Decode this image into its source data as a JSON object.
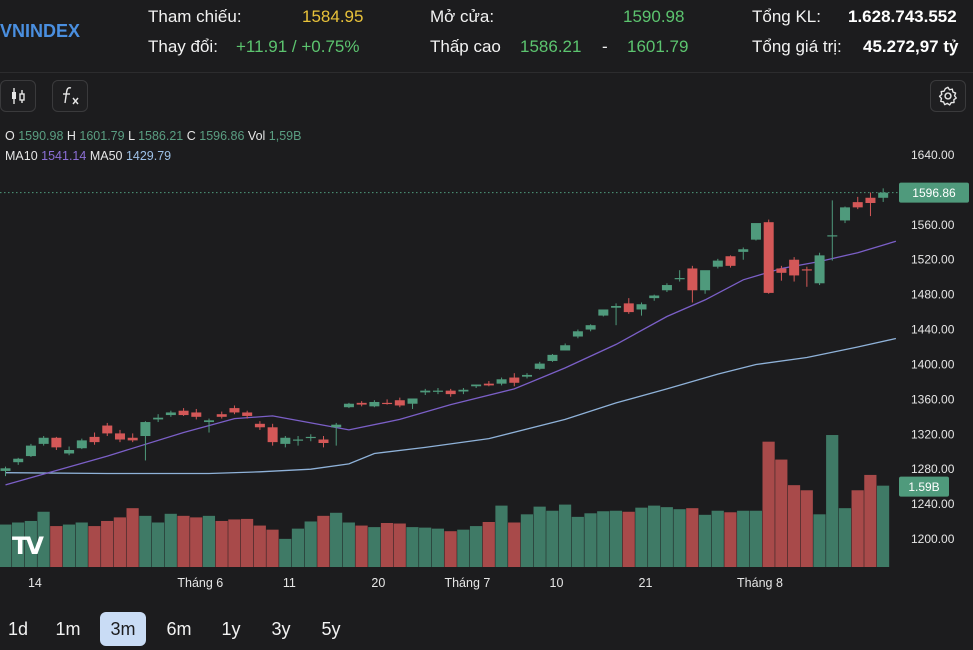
{
  "header": {
    "symbol": "VNINDEX",
    "ref_label": "Tham chiếu:",
    "ref_value": "1584.95",
    "change_label": "Thay đổi:",
    "change_value": "+11.91 / +0.75%",
    "open_label": "Mở cửa:",
    "open_value": "1590.98",
    "range_label": "Thấp cao",
    "low_value": "1586.21",
    "range_sep": "-",
    "high_value": "1601.79",
    "vol_label": "Tổng KL:",
    "vol_value": "1.628.743.552",
    "value_label": "Tổng giá trị:",
    "value_value": "45.272,97 tỷ"
  },
  "toolbar": {
    "candles_icon": "candlestick-icon",
    "indicator_icon": "function-icon",
    "settings_icon": "gear-icon"
  },
  "legend": {
    "o_label": "O",
    "o_value": "1590.98",
    "h_label": "H",
    "h_value": "1601.79",
    "l_label": "L",
    "l_value": "1586.21",
    "c_label": "C",
    "c_value": "1596.86",
    "vol_label": "Vol",
    "vol_value": "1,59B",
    "ma10_label": "MA10",
    "ma10_value": "1541.14",
    "ma50_label": "MA50",
    "ma50_value": "1429.79"
  },
  "logo": "TV",
  "ranges": [
    {
      "label": "1d",
      "active": false
    },
    {
      "label": "1m",
      "active": false
    },
    {
      "label": "3m",
      "active": true
    },
    {
      "label": "6m",
      "active": false
    },
    {
      "label": "1y",
      "active": false
    },
    {
      "label": "3y",
      "active": false
    },
    {
      "label": "5y",
      "active": false
    }
  ],
  "colors": {
    "up": "#4f9a7c",
    "down": "#d45858",
    "vol_up": "#3f7a66",
    "vol_down": "#a84a4a",
    "ma10": "#7b5fc7",
    "ma50": "#8fb2d9",
    "symbol": "#4a8fe0",
    "ref": "#e8c23a",
    "gain": "#5cc46f"
  },
  "chart_data": {
    "type": "candlestick",
    "y_ticks": [
      1200,
      1240,
      1280,
      1320,
      1360,
      1400,
      1440,
      1480,
      1520,
      1560,
      1600,
      1640
    ],
    "ylim": [
      1185,
      1650
    ],
    "y_tick_labels": [
      "1200.00",
      "1240.00",
      "1280.00",
      "1320.00",
      "1360.00",
      "1400.00",
      "1440.00",
      "1480.00",
      "1520.00",
      "1560.00",
      "1600.00",
      "1640.00"
    ],
    "last_price_label": "1596.86",
    "last_price": 1596.86,
    "last_volume_label": "1.59B",
    "x_tick_labels": [
      {
        "index": 2,
        "label": "14"
      },
      {
        "index": 15,
        "label": "Tháng 6"
      },
      {
        "index": 22,
        "label": "11"
      },
      {
        "index": 29,
        "label": "20"
      },
      {
        "index": 36,
        "label": "Tháng 7"
      },
      {
        "index": 43,
        "label": "10"
      },
      {
        "index": 50,
        "label": "21"
      },
      {
        "index": 59,
        "label": "Tháng 8"
      }
    ],
    "volume_max": 2.6,
    "candles": [
      {
        "o": 1278,
        "h": 1283,
        "l": 1272,
        "c": 1281,
        "v": 0.83
      },
      {
        "o": 1288,
        "h": 1293,
        "l": 1285,
        "c": 1292,
        "v": 0.87
      },
      {
        "o": 1295,
        "h": 1309,
        "l": 1294,
        "c": 1307,
        "v": 0.9
      },
      {
        "o": 1309,
        "h": 1318,
        "l": 1307,
        "c": 1316,
        "v": 1.08
      },
      {
        "o": 1316,
        "h": 1317,
        "l": 1302,
        "c": 1305,
        "v": 0.8
      },
      {
        "o": 1298,
        "h": 1306,
        "l": 1296,
        "c": 1302,
        "v": 0.83
      },
      {
        "o": 1304,
        "h": 1315,
        "l": 1303,
        "c": 1313,
        "v": 0.87
      },
      {
        "o": 1317,
        "h": 1322,
        "l": 1308,
        "c": 1311,
        "v": 0.8
      },
      {
        "o": 1330,
        "h": 1333,
        "l": 1318,
        "c": 1321,
        "v": 0.9
      },
      {
        "o": 1321,
        "h": 1325,
        "l": 1311,
        "c": 1314,
        "v": 0.97
      },
      {
        "o": 1316,
        "h": 1321,
        "l": 1311,
        "c": 1313,
        "v": 1.15
      },
      {
        "o": 1318,
        "h": 1335,
        "l": 1290,
        "c": 1334,
        "v": 1.0
      },
      {
        "o": 1337,
        "h": 1343,
        "l": 1334,
        "c": 1339,
        "v": 0.87
      },
      {
        "o": 1342,
        "h": 1347,
        "l": 1340,
        "c": 1345,
        "v": 1.04
      },
      {
        "o": 1347,
        "h": 1350,
        "l": 1341,
        "c": 1342,
        "v": 1.0
      },
      {
        "o": 1345,
        "h": 1349,
        "l": 1337,
        "c": 1340,
        "v": 0.97
      },
      {
        "o": 1334,
        "h": 1338,
        "l": 1322,
        "c": 1336,
        "v": 1.0
      },
      {
        "o": 1343,
        "h": 1346,
        "l": 1338,
        "c": 1340,
        "v": 0.9
      },
      {
        "o": 1350,
        "h": 1353,
        "l": 1343,
        "c": 1345,
        "v": 0.93
      },
      {
        "o": 1345,
        "h": 1347,
        "l": 1338,
        "c": 1341,
        "v": 0.94
      },
      {
        "o": 1332,
        "h": 1335,
        "l": 1325,
        "c": 1328,
        "v": 0.81
      },
      {
        "o": 1328,
        "h": 1332,
        "l": 1307,
        "c": 1311,
        "v": 0.73
      },
      {
        "o": 1309,
        "h": 1318,
        "l": 1305,
        "c": 1316,
        "v": 0.55
      },
      {
        "o": 1313,
        "h": 1318,
        "l": 1307,
        "c": 1314,
        "v": 0.75
      },
      {
        "o": 1316,
        "h": 1320,
        "l": 1312,
        "c": 1317,
        "v": 0.89
      },
      {
        "o": 1314,
        "h": 1318,
        "l": 1305,
        "c": 1310,
        "v": 1.0
      },
      {
        "o": 1328,
        "h": 1333,
        "l": 1307,
        "c": 1331,
        "v": 1.06
      },
      {
        "o": 1351,
        "h": 1356,
        "l": 1350,
        "c": 1355,
        "v": 0.87
      },
      {
        "o": 1356,
        "h": 1358,
        "l": 1352,
        "c": 1354,
        "v": 0.81
      },
      {
        "o": 1352,
        "h": 1359,
        "l": 1351,
        "c": 1357,
        "v": 0.78
      },
      {
        "o": 1356,
        "h": 1360,
        "l": 1354,
        "c": 1355,
        "v": 0.86
      },
      {
        "o": 1359,
        "h": 1362,
        "l": 1351,
        "c": 1353,
        "v": 0.85
      },
      {
        "o": 1355,
        "h": 1361,
        "l": 1349,
        "c": 1361,
        "v": 0.78
      },
      {
        "o": 1368,
        "h": 1372,
        "l": 1365,
        "c": 1370,
        "v": 0.77
      },
      {
        "o": 1370,
        "h": 1373,
        "l": 1366,
        "c": 1370,
        "v": 0.75
      },
      {
        "o": 1370,
        "h": 1372,
        "l": 1363,
        "c": 1366,
        "v": 0.7
      },
      {
        "o": 1369,
        "h": 1373,
        "l": 1366,
        "c": 1371,
        "v": 0.73
      },
      {
        "o": 1375,
        "h": 1377,
        "l": 1373,
        "c": 1377,
        "v": 0.8
      },
      {
        "o": 1378,
        "h": 1381,
        "l": 1375,
        "c": 1376,
        "v": 0.88
      },
      {
        "o": 1378,
        "h": 1385,
        "l": 1376,
        "c": 1383,
        "v": 1.2
      },
      {
        "o": 1385,
        "h": 1390,
        "l": 1375,
        "c": 1379,
        "v": 0.87
      },
      {
        "o": 1386,
        "h": 1390,
        "l": 1384,
        "c": 1388,
        "v": 1.03
      },
      {
        "o": 1395,
        "h": 1403,
        "l": 1394,
        "c": 1401,
        "v": 1.18
      },
      {
        "o": 1404,
        "h": 1412,
        "l": 1403,
        "c": 1411,
        "v": 1.1
      },
      {
        "o": 1416,
        "h": 1424,
        "l": 1416,
        "c": 1422,
        "v": 1.22
      },
      {
        "o": 1432,
        "h": 1440,
        "l": 1430,
        "c": 1438,
        "v": 0.98
      },
      {
        "o": 1440,
        "h": 1446,
        "l": 1438,
        "c": 1445,
        "v": 1.05
      },
      {
        "o": 1456,
        "h": 1462,
        "l": 1455,
        "c": 1463,
        "v": 1.09
      },
      {
        "o": 1465,
        "h": 1470,
        "l": 1445,
        "c": 1467,
        "v": 1.1
      },
      {
        "o": 1470,
        "h": 1476,
        "l": 1458,
        "c": 1460,
        "v": 1.08
      },
      {
        "o": 1463,
        "h": 1471,
        "l": 1456,
        "c": 1469,
        "v": 1.16
      },
      {
        "o": 1476,
        "h": 1480,
        "l": 1473,
        "c": 1479,
        "v": 1.2
      },
      {
        "o": 1485,
        "h": 1493,
        "l": 1483,
        "c": 1491,
        "v": 1.17
      },
      {
        "o": 1498,
        "h": 1508,
        "l": 1495,
        "c": 1499,
        "v": 1.13
      },
      {
        "o": 1510,
        "h": 1513,
        "l": 1471,
        "c": 1485,
        "v": 1.15
      },
      {
        "o": 1485,
        "h": 1505,
        "l": 1481,
        "c": 1508,
        "v": 1.02
      },
      {
        "o": 1512,
        "h": 1521,
        "l": 1510,
        "c": 1519,
        "v": 1.1
      },
      {
        "o": 1524,
        "h": 1525,
        "l": 1511,
        "c": 1513,
        "v": 1.07
      },
      {
        "o": 1529,
        "h": 1534,
        "l": 1520,
        "c": 1532,
        "v": 1.1
      },
      {
        "o": 1543,
        "h": 1561,
        "l": 1542,
        "c": 1562,
        "v": 1.1
      },
      {
        "o": 1563,
        "h": 1566,
        "l": 1481,
        "c": 1482,
        "v": 2.45
      },
      {
        "o": 1510,
        "h": 1513,
        "l": 1496,
        "c": 1505,
        "v": 2.1
      },
      {
        "o": 1520,
        "h": 1523,
        "l": 1495,
        "c": 1502,
        "v": 1.6
      },
      {
        "o": 1509,
        "h": 1512,
        "l": 1489,
        "c": 1508,
        "v": 1.5
      },
      {
        "o": 1493,
        "h": 1528,
        "l": 1491,
        "c": 1525,
        "v": 1.03
      },
      {
        "o": 1548,
        "h": 1588,
        "l": 1519,
        "c": 1548,
        "v": 2.58
      },
      {
        "o": 1565,
        "h": 1581,
        "l": 1562,
        "c": 1580,
        "v": 1.15
      },
      {
        "o": 1586,
        "h": 1592,
        "l": 1578,
        "c": 1580,
        "v": 1.5
      },
      {
        "o": 1591,
        "h": 1597,
        "l": 1570,
        "c": 1585,
        "v": 1.8
      },
      {
        "o": 1590.98,
        "h": 1601.79,
        "l": 1586.21,
        "c": 1596.86,
        "v": 1.59
      }
    ],
    "ma10": [
      [
        0,
        1262
      ],
      [
        8,
        1295
      ],
      [
        14,
        1322
      ],
      [
        18,
        1338
      ],
      [
        21,
        1341
      ],
      [
        24,
        1333
      ],
      [
        27,
        1325
      ],
      [
        31,
        1337
      ],
      [
        35,
        1354
      ],
      [
        40,
        1372
      ],
      [
        44,
        1396
      ],
      [
        48,
        1423
      ],
      [
        52,
        1455
      ],
      [
        55,
        1474
      ],
      [
        58,
        1497
      ],
      [
        61,
        1510
      ],
      [
        64,
        1518
      ],
      [
        67,
        1528
      ],
      [
        70,
        1541.14
      ]
    ],
    "ma50": [
      [
        0,
        1276
      ],
      [
        8,
        1275
      ],
      [
        16,
        1275
      ],
      [
        20,
        1277
      ],
      [
        24,
        1280
      ],
      [
        27,
        1286
      ],
      [
        29,
        1298
      ],
      [
        33,
        1305
      ],
      [
        38,
        1315
      ],
      [
        44,
        1337
      ],
      [
        48,
        1356
      ],
      [
        52,
        1372
      ],
      [
        56,
        1389
      ],
      [
        59,
        1400
      ],
      [
        63,
        1408
      ],
      [
        67,
        1420
      ],
      [
        70,
        1429.79
      ]
    ]
  }
}
